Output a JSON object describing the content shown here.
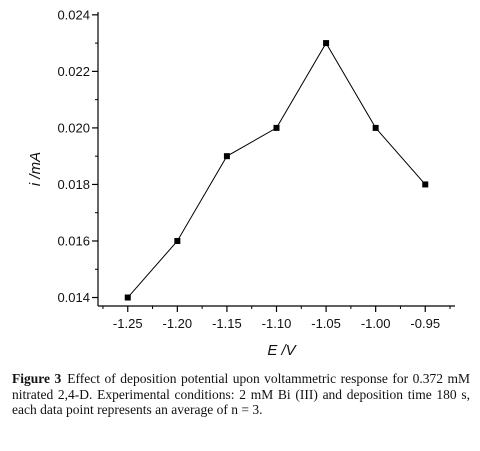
{
  "chart_data": {
    "type": "line",
    "x": [
      -1.25,
      -1.2,
      -1.15,
      -1.1,
      -1.05,
      -1.0,
      -0.95
    ],
    "values": [
      0.014,
      0.016,
      0.019,
      0.02,
      0.023,
      0.02,
      0.018
    ],
    "xlim": [
      -1.28,
      -0.92
    ],
    "ylim": [
      0.0137,
      0.0241
    ],
    "x_ticks": [
      -1.25,
      -1.2,
      -1.15,
      -1.1,
      -1.05,
      -1.0,
      -0.95
    ],
    "x_tick_labels": [
      "-1.25",
      "-1.20",
      "-1.15",
      "-1.10",
      "-1.05",
      "-1.00",
      "-0.95"
    ],
    "y_ticks": [
      0.014,
      0.016,
      0.018,
      0.02,
      0.022,
      0.024
    ],
    "y_tick_labels": [
      "0.014",
      "0.016",
      "0.018",
      "0.020",
      "0.022",
      "0.024"
    ],
    "xlabel": {
      "symbol": "E",
      "unit": " /V"
    },
    "ylabel": {
      "symbol": "i",
      "unit": " /mA"
    },
    "grid": false,
    "marker": "square",
    "line_color": "#000000"
  },
  "caption": {
    "label": "Figure 3",
    "text": "Effect of deposition potential upon voltammetric response for 0.372 mM nitrated 2,4-D. Experimental conditions: 2 mM Bi (III) and deposition time 180 s, each data point represents an average of n = 3."
  }
}
